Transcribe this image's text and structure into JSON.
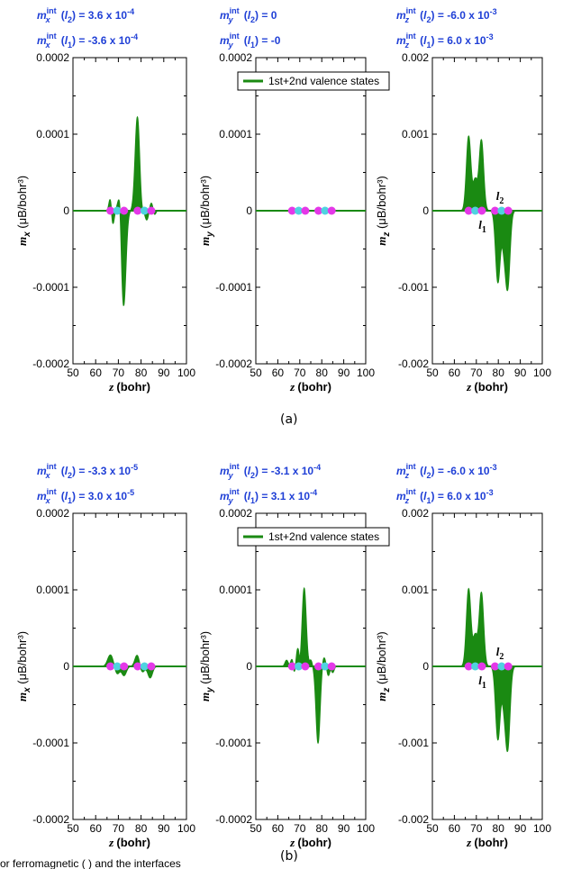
{
  "chart_data": [
    {
      "id": "a1",
      "type": "area",
      "ylim": [
        -0.0002,
        0.0002
      ],
      "yticks": [
        "0.0002",
        "0.0001",
        "0",
        "-0.0001",
        "-0.0002"
      ],
      "xticks": [
        "50",
        "60",
        "70",
        "80",
        "90",
        "100"
      ],
      "xlim": [
        50,
        100
      ],
      "ylabel_var": "m",
      "ylabel_sub": "x",
      "ylabel_unit": "(μB/bohr³)",
      "xlabel_var": "z",
      "xlabel_unit": "(bohr)",
      "ann_top": {
        "var": "m",
        "sub": "x",
        "sup": "int",
        "arg": "l",
        "argsub": "2",
        "value": "= 3.6 x 10",
        "exp": "-4"
      },
      "ann_bot": {
        "var": "m",
        "sub": "x",
        "sup": "int",
        "arg": "l",
        "argsub": "1",
        "value": "= -3.6 x 10",
        "exp": "-4"
      },
      "series": [
        {
          "name": "1st+2nd valence states",
          "color": "#1a8a12",
          "peaks": [
            [
              66.5,
              1.8e-05,
              0.6
            ],
            [
              67.5,
              -2e-05,
              0.6
            ],
            [
              70,
              1e-05,
              0.7
            ],
            [
              72.3,
              -0.000125,
              1.0
            ],
            [
              70.8,
              3e-05,
              0.6
            ],
            [
              78.4,
              0.000123,
              1.0
            ],
            [
              80,
              -1e-05,
              0.7
            ],
            [
              82.5,
              -1.2e-05,
              0.7
            ],
            [
              84.5,
              1e-05,
              0.6
            ],
            [
              86,
              -5e-06,
              0.5
            ]
          ]
        }
      ],
      "dots": [
        66.5,
        69.5,
        72.5,
        78.5,
        81.5,
        84.5
      ]
    },
    {
      "id": "a2",
      "type": "area",
      "ylim": [
        -0.0002,
        0.0002
      ],
      "yticks": [
        "0.0002",
        "0.0001",
        "0",
        "-0.0001",
        "-0.0002"
      ],
      "xticks": [
        "50",
        "60",
        "70",
        "80",
        "90",
        "100"
      ],
      "xlim": [
        50,
        100
      ],
      "ylabel_var": "m",
      "ylabel_sub": "y",
      "ylabel_unit": "(μB/bohr³)",
      "xlabel_var": "z",
      "xlabel_unit": "(bohr)",
      "legend": "1st+2nd valence states",
      "ann_top": {
        "var": "m",
        "sub": "y",
        "sup": "int",
        "arg": "l",
        "argsub": "2",
        "value": "= 0",
        "exp": ""
      },
      "ann_bot": {
        "var": "m",
        "sub": "y",
        "sup": "int",
        "arg": "l",
        "argsub": "1",
        "value": "= -0",
        "exp": ""
      },
      "series": [
        {
          "name": "1st+2nd valence states",
          "color": "#1a8a12",
          "peaks": []
        }
      ],
      "dots": [
        66.5,
        69.5,
        72.5,
        78.5,
        81.5,
        84.5
      ]
    },
    {
      "id": "a3",
      "type": "area",
      "ylim": [
        -0.002,
        0.002
      ],
      "yticks": [
        "0.002",
        "0.001",
        "0",
        "-0.001",
        "-0.002"
      ],
      "xticks": [
        "50",
        "60",
        "70",
        "80",
        "90",
        "100"
      ],
      "xlim": [
        50,
        100
      ],
      "ylabel_var": "m",
      "ylabel_sub": "z",
      "ylabel_unit": "(μB/bohr³)",
      "xlabel_var": "z",
      "xlabel_unit": "(bohr)",
      "labels_l": {
        "l1": "l",
        "l1sub": "1",
        "l2": "l",
        "l2sub": "2"
      },
      "ann_top": {
        "var": "m",
        "sub": "z",
        "sup": "int",
        "arg": "l",
        "argsub": "2",
        "value": "= -6.0 x 10",
        "exp": "-3"
      },
      "ann_bot": {
        "var": "m",
        "sub": "z",
        "sup": "int",
        "arg": "l",
        "argsub": "1",
        "value": "= 6.0 x 10",
        "exp": "-3"
      },
      "series": [
        {
          "name": "1st+2nd valence states",
          "color": "#1a8a12",
          "peaks": [
            [
              66.5,
              0.00097,
              1.0
            ],
            [
              69.5,
              0.0004,
              1.0
            ],
            [
              72.3,
              0.00092,
              1.0
            ],
            [
              79.8,
              -0.00093,
              1.0
            ],
            [
              82.5,
              -0.0004,
              1.0
            ],
            [
              84.3,
              -0.00095,
              1.0
            ]
          ]
        }
      ],
      "dots": [
        66.5,
        69.5,
        72.5,
        78.5,
        81.5,
        84.5
      ]
    },
    {
      "id": "b1",
      "type": "area",
      "ylim": [
        -0.0002,
        0.0002
      ],
      "yticks": [
        "0.0002",
        "0.0001",
        "0",
        "-0.0001",
        "-0.0002"
      ],
      "xticks": [
        "50",
        "60",
        "70",
        "80",
        "90",
        "100"
      ],
      "xlim": [
        50,
        100
      ],
      "ylabel_var": "m",
      "ylabel_sub": "x",
      "ylabel_unit": "(μB/bohr³)",
      "xlabel_var": "z",
      "xlabel_unit": "(bohr)",
      "ann_top": {
        "var": "m",
        "sub": "x",
        "sup": "int",
        "arg": "l",
        "argsub": "2",
        "value": "= -3.3 x 10",
        "exp": "-5"
      },
      "ann_bot": {
        "var": "m",
        "sub": "x",
        "sup": "int",
        "arg": "l",
        "argsub": "1",
        "value": "= 3.0 x 10",
        "exp": "-5"
      },
      "series": [
        {
          "name": "1st+2nd valence states",
          "color": "#1a8a12",
          "peaks": [
            [
              66.5,
              1.5e-05,
              1.2
            ],
            [
              69.5,
              -1e-05,
              1.0
            ],
            [
              72.5,
              -1.2e-05,
              1.0
            ],
            [
              78.3,
              1.5e-05,
              1.0
            ],
            [
              80.5,
              -8e-06,
              1.0
            ],
            [
              84,
              -1.5e-05,
              1.0
            ]
          ]
        }
      ],
      "dots": [
        66.5,
        69.5,
        72.5,
        78.5,
        81.5,
        84.5
      ]
    },
    {
      "id": "b2",
      "type": "area",
      "ylim": [
        -0.0002,
        0.0002
      ],
      "yticks": [
        "0.0002",
        "0.0001",
        "0",
        "-0.0001",
        "-0.0002"
      ],
      "xticks": [
        "50",
        "60",
        "70",
        "80",
        "90",
        "100"
      ],
      "xlim": [
        50,
        100
      ],
      "ylabel_var": "m",
      "ylabel_sub": "y",
      "ylabel_unit": "(μB/bohr³)",
      "xlabel_var": "z",
      "xlabel_unit": "(bohr)",
      "legend": "1st+2nd valence states",
      "ann_top": {
        "var": "m",
        "sub": "y",
        "sup": "int",
        "arg": "l",
        "argsub": "2",
        "value": "= -3.1 x 10",
        "exp": "-4"
      },
      "ann_bot": {
        "var": "m",
        "sub": "y",
        "sup": "int",
        "arg": "l",
        "argsub": "1",
        "value": "= 3.1 x 10",
        "exp": "-4"
      },
      "series": [
        {
          "name": "1st+2nd valence states",
          "color": "#1a8a12",
          "peaks": [
            [
              64,
              8e-06,
              0.7
            ],
            [
              66.5,
              1e-05,
              0.6
            ],
            [
              67.5,
              -1e-05,
              0.5
            ],
            [
              69.2,
              2.5e-05,
              0.7
            ],
            [
              72,
              0.000102,
              0.9
            ],
            [
              70,
              -1e-05,
              0.5
            ],
            [
              75,
              8e-06,
              0.6
            ],
            [
              78.3,
              -0.0001,
              0.9
            ],
            [
              81,
              1.2e-05,
              0.7
            ],
            [
              83,
              -1.2e-05,
              0.6
            ],
            [
              85,
              -8e-06,
              0.6
            ]
          ]
        }
      ],
      "dots": [
        66.5,
        69.5,
        72.5,
        78.5,
        81.5,
        84.5
      ]
    },
    {
      "id": "b3",
      "type": "area",
      "ylim": [
        -0.002,
        0.002
      ],
      "yticks": [
        "0.002",
        "0.001",
        "0",
        "-0.001",
        "-0.002"
      ],
      "xticks": [
        "50",
        "60",
        "70",
        "80",
        "90",
        "100"
      ],
      "xlim": [
        50,
        100
      ],
      "ylabel_var": "m",
      "ylabel_sub": "z",
      "ylabel_unit": "(μB/bohr³)",
      "xlabel_var": "z",
      "xlabel_unit": "(bohr)",
      "labels_l": {
        "l1": "l",
        "l1sub": "1",
        "l2": "l",
        "l2sub": "2"
      },
      "ann_top": {
        "var": "m",
        "sub": "z",
        "sup": "int",
        "arg": "l",
        "argsub": "2",
        "value": "= -6.0 x 10",
        "exp": "-3"
      },
      "ann_bot": {
        "var": "m",
        "sub": "z",
        "sup": "int",
        "arg": "l",
        "argsub": "1",
        "value": "= 6.0 x 10",
        "exp": "-3"
      },
      "series": [
        {
          "name": "1st+2nd valence states",
          "color": "#1a8a12",
          "peaks": [
            [
              66.5,
              0.00101,
              1.0
            ],
            [
              69.5,
              0.0004,
              1.0
            ],
            [
              72.3,
              0.00096,
              1.0
            ],
            [
              79.8,
              -0.00095,
              1.0
            ],
            [
              82.5,
              -0.0004,
              1.0
            ],
            [
              84.3,
              -0.00102,
              1.0
            ]
          ]
        }
      ],
      "dots": [
        66.5,
        69.5,
        72.5,
        78.5,
        81.5,
        84.5
      ]
    }
  ],
  "captions": {
    "a": "(a)",
    "b": "(b)"
  },
  "bottom_fragment": "or  ferromagnetic  (  )  and    the          interfaces"
}
